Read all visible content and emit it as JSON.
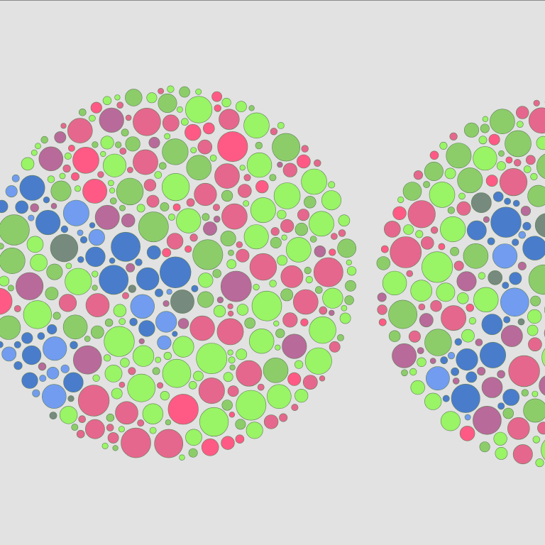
{
  "image": {
    "subject": "color-vision-test-plates",
    "background_color": "#e2e2e2",
    "plates": [
      {
        "label": "plate-left",
        "pattern": "green-pink-figure-blue-gray-dots"
      },
      {
        "label": "plate-right",
        "pattern": "green-pink-figure-blue-dots"
      }
    ],
    "palette": {
      "light_green": "#99f466",
      "mid_green": "#8ccd6a",
      "pink": "#e5678e",
      "hot_pink": "#ff5a86",
      "mauve": "#b86a9a",
      "blue": "#4a7ccc",
      "light_blue": "#729cf0",
      "slate": "#768a7e"
    }
  }
}
